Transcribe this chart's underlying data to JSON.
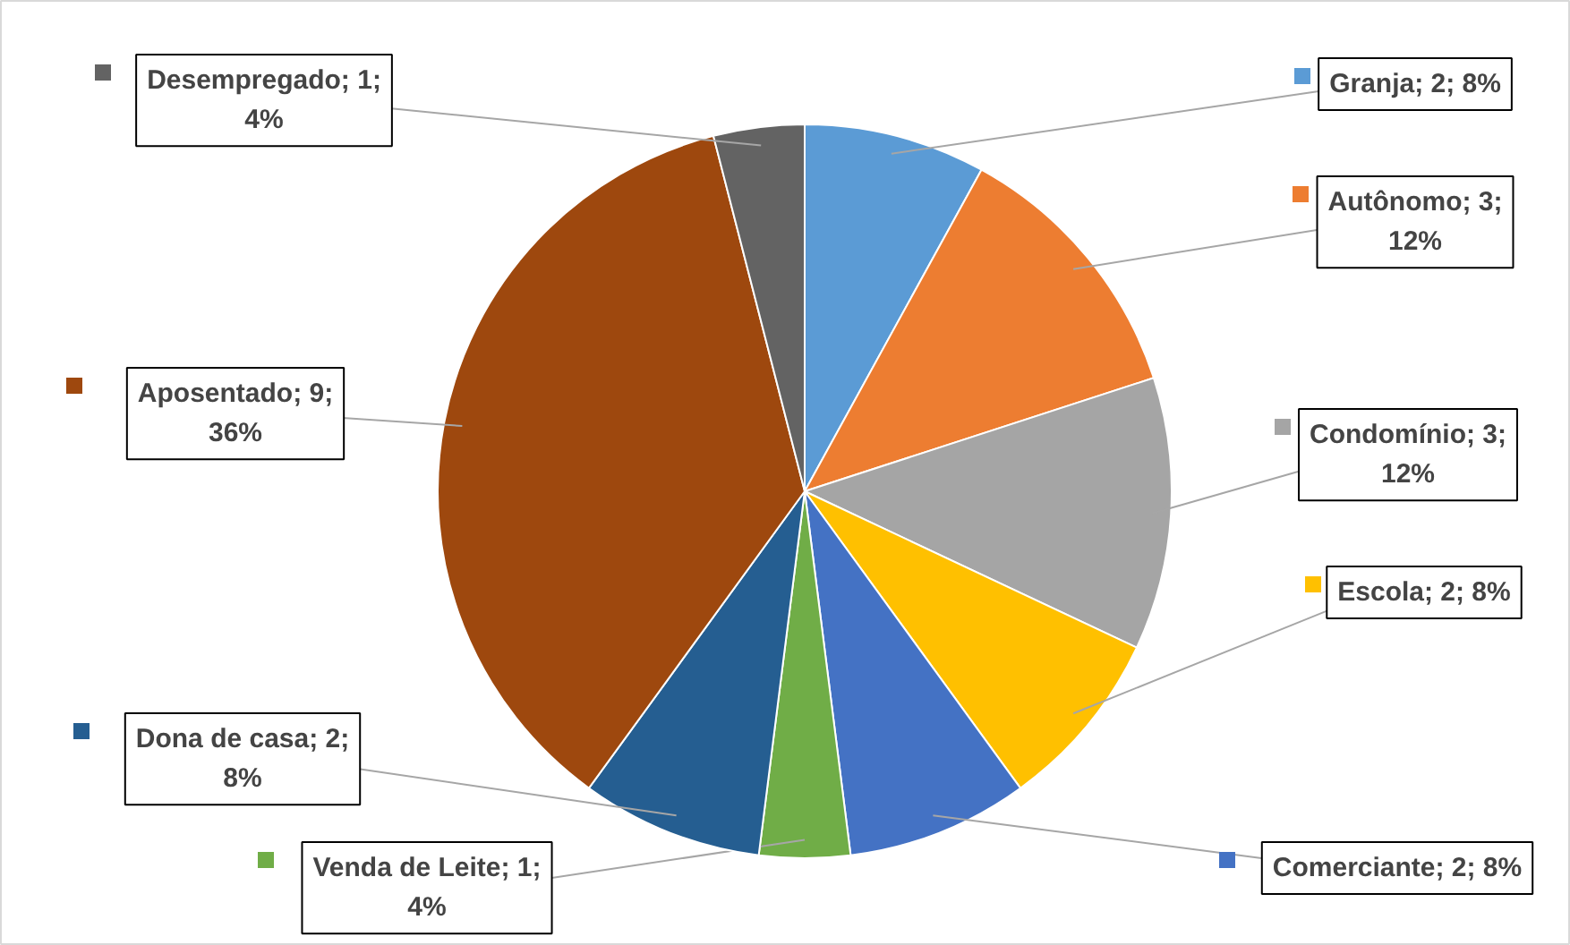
{
  "chart_data": {
    "type": "pie",
    "categories": [
      "Granja",
      "Autônomo",
      "Condomínio",
      "Escola",
      "Comerciante",
      "Venda de Leite",
      "Dona de casa",
      "Aposentado",
      "Desempregado"
    ],
    "values": [
      2,
      3,
      3,
      2,
      2,
      1,
      2,
      9,
      1
    ],
    "colors": [
      "#5b9bd5",
      "#ed7d31",
      "#a5a5a5",
      "#ffc000",
      "#4472c4",
      "#70ad47",
      "#255e91",
      "#9e480e",
      "#636363"
    ],
    "legend": "right",
    "value_labels": [
      "2; 8%",
      "3; 12%",
      "3; 12%",
      "2; 8%",
      "2; 8%",
      "1; 4%",
      "2; 8%",
      "9; 36%",
      "1; 4%"
    ]
  }
}
